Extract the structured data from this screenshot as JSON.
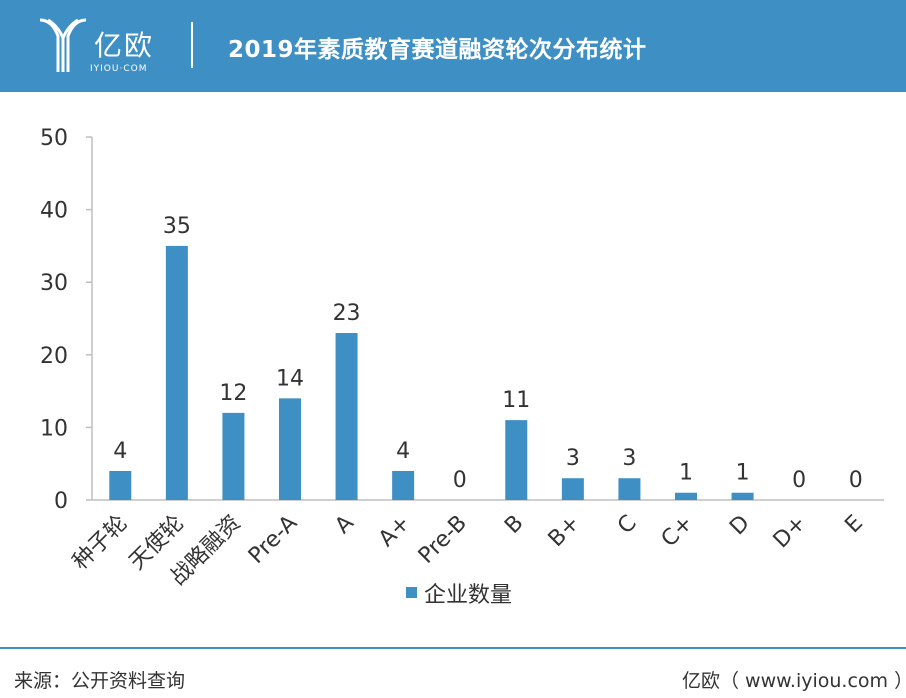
{
  "header": {
    "logo_cn": "亿欧",
    "logo_en": "IYIOU·COM",
    "title": "2019年素质教育赛道融资轮次分布统计",
    "bg_color": "#3e8fc3"
  },
  "chart_data": {
    "type": "bar",
    "categories": [
      "种子轮",
      "天使轮",
      "战略融资",
      "Pre-A",
      "A",
      "A+",
      "Pre-B",
      "B",
      "B+",
      "C",
      "C+",
      "D",
      "D+",
      "E"
    ],
    "series": [
      {
        "name": "企业数量",
        "values": [
          4,
          35,
          12,
          14,
          23,
          4,
          0,
          11,
          3,
          3,
          1,
          1,
          0,
          0
        ],
        "color": "#3e8fc3"
      }
    ],
    "ylim": [
      0,
      50
    ],
    "yticks": [
      0,
      10,
      20,
      30,
      40,
      50
    ],
    "grid": false,
    "legend_position": "bottom"
  },
  "footer": {
    "source": "来源：公开资料查询",
    "credit": "亿欧（ www.iyiou.com ）"
  }
}
